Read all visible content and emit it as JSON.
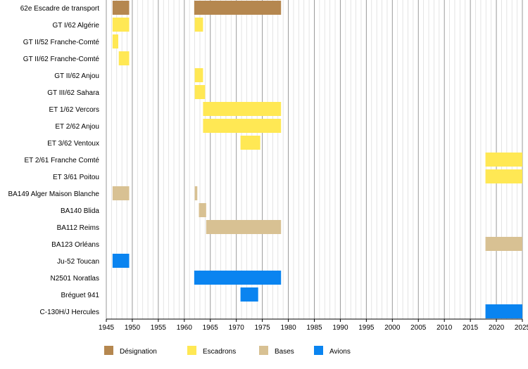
{
  "chart_data": {
    "type": "timeline",
    "x_range": [
      1945,
      2025
    ],
    "major_tick_step": 5,
    "minor_tick_step": 1,
    "grid": true,
    "tick_labels": [
      "1945",
      "1950",
      "1955",
      "1960",
      "1965",
      "1970",
      "1975",
      "1980",
      "1985",
      "1990",
      "1995",
      "2000",
      "2005",
      "2010",
      "2015",
      "2020",
      "2025"
    ],
    "legend_position": "bottom",
    "categories": [
      {
        "key": "designation",
        "label": "Désignation",
        "color": "#b5874f"
      },
      {
        "key": "escadrons",
        "label": "Escadrons",
        "color": "#ffe854"
      },
      {
        "key": "bases",
        "label": "Bases",
        "color": "#d8c193"
      },
      {
        "key": "avions",
        "label": "Avions",
        "color": "#0a84f0"
      }
    ],
    "rows": [
      {
        "label": "62e Escadre de transport",
        "category": "designation",
        "segments": [
          [
            1946.2,
            1949.4
          ],
          [
            1961.9,
            1978.6
          ]
        ]
      },
      {
        "label": "GT I/62 Algérie",
        "category": "escadrons",
        "segments": [
          [
            1946.2,
            1949.4
          ],
          [
            1962.0,
            1963.6
          ]
        ]
      },
      {
        "label": "GT II/52 Franche-Comté",
        "category": "escadrons",
        "segments": [
          [
            1946.2,
            1947.3
          ]
        ]
      },
      {
        "label": "GT II/62 Franche-Comté",
        "category": "escadrons",
        "segments": [
          [
            1947.4,
            1949.4
          ]
        ]
      },
      {
        "label": "GT II/62 Anjou",
        "category": "escadrons",
        "segments": [
          [
            1962.0,
            1963.6
          ]
        ]
      },
      {
        "label": "GT III/62 Sahara",
        "category": "escadrons",
        "segments": [
          [
            1962.0,
            1964.0
          ]
        ]
      },
      {
        "label": "ET 1/62 Vercors",
        "category": "escadrons",
        "segments": [
          [
            1963.6,
            1978.6
          ]
        ]
      },
      {
        "label": "ET 2/62 Anjou",
        "category": "escadrons",
        "segments": [
          [
            1963.6,
            1978.6
          ]
        ]
      },
      {
        "label": "ET 3/62 Ventoux",
        "category": "escadrons",
        "segments": [
          [
            1970.8,
            1974.6
          ]
        ]
      },
      {
        "label": "ET 2/61 Franche Comté",
        "category": "escadrons",
        "segments": [
          [
            2017.9,
            2025.0
          ]
        ]
      },
      {
        "label": "ET 3/61 Poitou",
        "category": "escadrons",
        "segments": [
          [
            2017.9,
            2025.0
          ]
        ]
      },
      {
        "label": "BA149 Alger Maison Blanche",
        "category": "bases",
        "segments": [
          [
            1946.2,
            1949.4
          ],
          [
            1962.0,
            1962.5
          ]
        ]
      },
      {
        "label": "BA140 Blida",
        "category": "bases",
        "segments": [
          [
            1962.8,
            1964.2
          ]
        ]
      },
      {
        "label": "BA112 Reims",
        "category": "bases",
        "segments": [
          [
            1964.2,
            1978.6
          ]
        ]
      },
      {
        "label": "BA123 Orléans",
        "category": "bases",
        "segments": [
          [
            2017.9,
            2025.0
          ]
        ]
      },
      {
        "label": "Ju-52 Toucan",
        "category": "avions",
        "segments": [
          [
            1946.2,
            1949.4
          ]
        ]
      },
      {
        "label": "N2501 Noratlas",
        "category": "avions",
        "segments": [
          [
            1961.9,
            1978.6
          ]
        ]
      },
      {
        "label": "Bréguet 941",
        "category": "avions",
        "segments": [
          [
            1970.8,
            1974.2
          ]
        ]
      },
      {
        "label": "C-130H/J Hercules",
        "category": "avions",
        "segments": [
          [
            2017.9,
            2025.0
          ]
        ]
      }
    ]
  }
}
